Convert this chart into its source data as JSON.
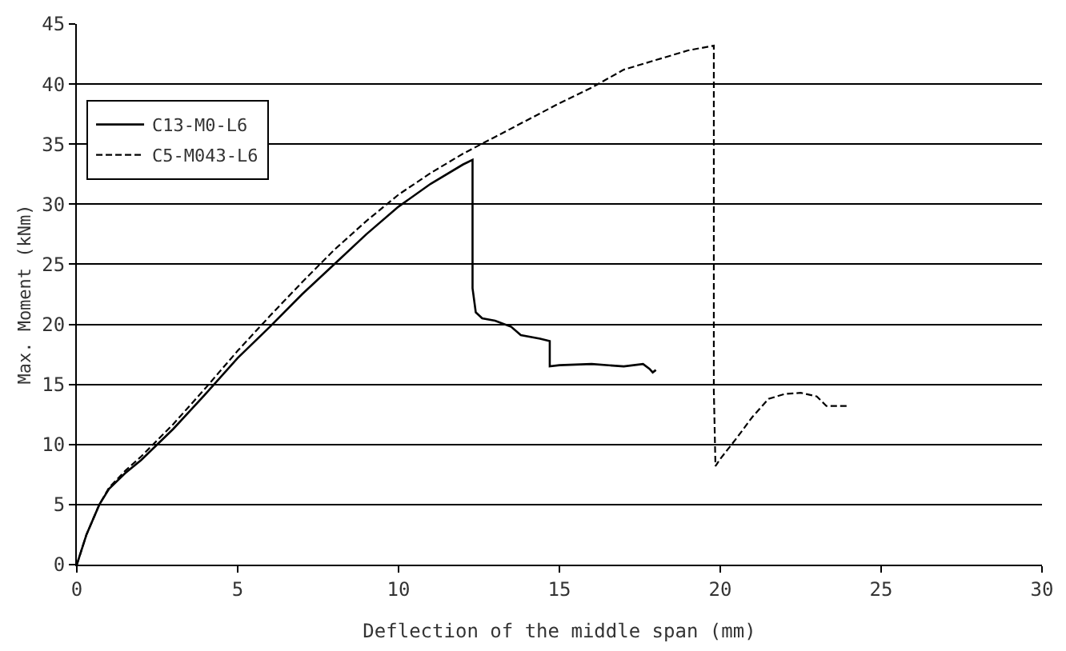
{
  "chart_data": {
    "type": "line",
    "xlabel": "Deflection of the middle span (mm)",
    "ylabel": "Max. Moment (kNm)",
    "xlim": [
      0,
      30
    ],
    "xticks": [
      0,
      5,
      10,
      15,
      20,
      25,
      30
    ],
    "ylim": [
      0,
      45
    ],
    "yticks": [
      0,
      5,
      10,
      15,
      20,
      25,
      30,
      35,
      40,
      45
    ],
    "grid": "y",
    "legend": "top left",
    "series": [
      {
        "name": "C13-M0-L6",
        "color": "#000000",
        "line_style": "solid",
        "x": [
          0,
          0.3,
          0.7,
          1,
          1.5,
          2,
          3,
          4,
          5,
          6,
          7,
          8,
          9,
          10,
          11,
          12,
          12.3,
          12.3,
          12.4,
          12.6,
          13,
          13.5,
          13.8,
          14.4,
          14.7,
          14.7,
          15,
          16,
          17,
          17.6,
          17.8,
          17.9,
          18
        ],
        "values": [
          0,
          2.5,
          5,
          6.3,
          7.6,
          8.7,
          11.3,
          14.2,
          17.2,
          19.8,
          22.5,
          25.0,
          27.5,
          29.8,
          31.7,
          33.3,
          33.7,
          23,
          21,
          20.5,
          20.3,
          19.8,
          19.1,
          18.8,
          18.6,
          16.5,
          16.6,
          16.7,
          16.5,
          16.7,
          16.3,
          16.0,
          16.2
        ]
      },
      {
        "name": "C5-M043-L6",
        "color": "#000000",
        "line_style": "dashed",
        "x": [
          0,
          0.3,
          0.7,
          1,
          1.5,
          2,
          3,
          4,
          5,
          6,
          7,
          8,
          9,
          10,
          11,
          12,
          13,
          14,
          15,
          16,
          17,
          18,
          19,
          19.8,
          19.8,
          19.85,
          20,
          20.5,
          21,
          21.5,
          22,
          22.5,
          23,
          23.3,
          24
        ],
        "values": [
          0,
          2.5,
          5,
          6.4,
          7.8,
          9,
          11.7,
          14.7,
          17.8,
          20.7,
          23.5,
          26.2,
          28.6,
          30.8,
          32.6,
          34.2,
          35.6,
          37,
          38.4,
          39.7,
          41.2,
          42,
          42.8,
          43.2,
          14.5,
          8.2,
          8.8,
          10.5,
          12.3,
          13.8,
          14.2,
          14.3,
          14,
          13.2,
          13.2
        ]
      }
    ]
  }
}
